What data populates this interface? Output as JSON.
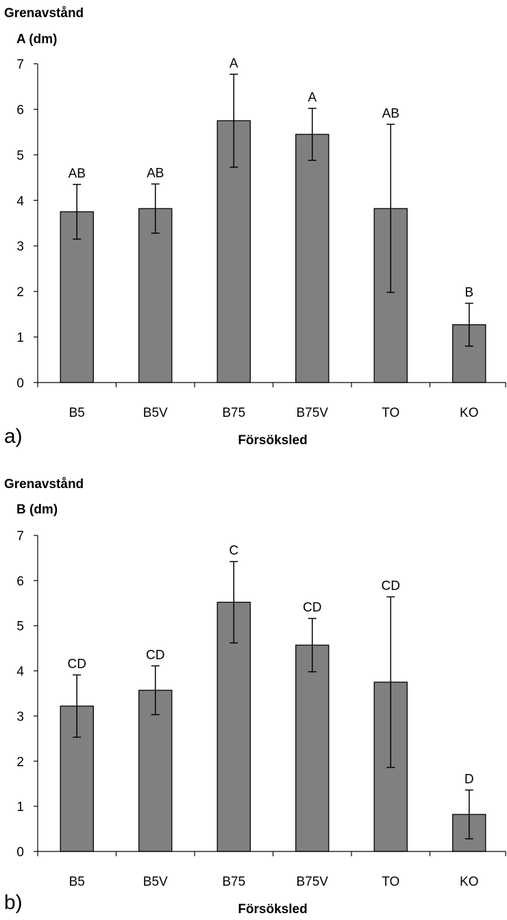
{
  "chart_data": [
    {
      "type": "bar",
      "panel_label": "a)",
      "ylabel_line1": "Grenavstånd",
      "ylabel_line2": "A (dm)",
      "xlabel": "Försöksled",
      "categories": [
        "B5",
        "B5V",
        "B75",
        "B75V",
        "TO",
        "KO"
      ],
      "values": [
        3.75,
        3.82,
        5.75,
        5.45,
        3.82,
        1.27
      ],
      "error_low": [
        3.15,
        3.28,
        4.73,
        4.88,
        1.98,
        0.8
      ],
      "error_high": [
        4.35,
        4.36,
        6.77,
        6.02,
        5.67,
        1.74
      ],
      "letters": [
        "AB",
        "AB",
        "A",
        "A",
        "AB",
        "B"
      ],
      "ylim": [
        0,
        7
      ],
      "yticks": [
        "0",
        "1",
        "2",
        "3",
        "4",
        "5",
        "6",
        "7"
      ],
      "grid": false,
      "bar_color": "#808080"
    },
    {
      "type": "bar",
      "panel_label": "b)",
      "ylabel_line1": "Grenavstånd",
      "ylabel_line2": "B (dm)",
      "xlabel": "Försöksled",
      "categories": [
        "B5",
        "B5V",
        "B75",
        "B75V",
        "TO",
        "KO"
      ],
      "values": [
        3.22,
        3.57,
        5.52,
        4.57,
        3.75,
        0.82
      ],
      "error_low": [
        2.53,
        3.03,
        4.62,
        3.98,
        1.86,
        0.28
      ],
      "error_high": [
        3.91,
        4.11,
        6.42,
        5.16,
        5.64,
        1.36
      ],
      "letters": [
        "CD",
        "CD",
        "C",
        "CD",
        "CD",
        "D"
      ],
      "ylim": [
        0,
        7
      ],
      "yticks": [
        "0",
        "1",
        "2",
        "3",
        "4",
        "5",
        "6",
        "7"
      ],
      "grid": false,
      "bar_color": "#808080"
    }
  ]
}
